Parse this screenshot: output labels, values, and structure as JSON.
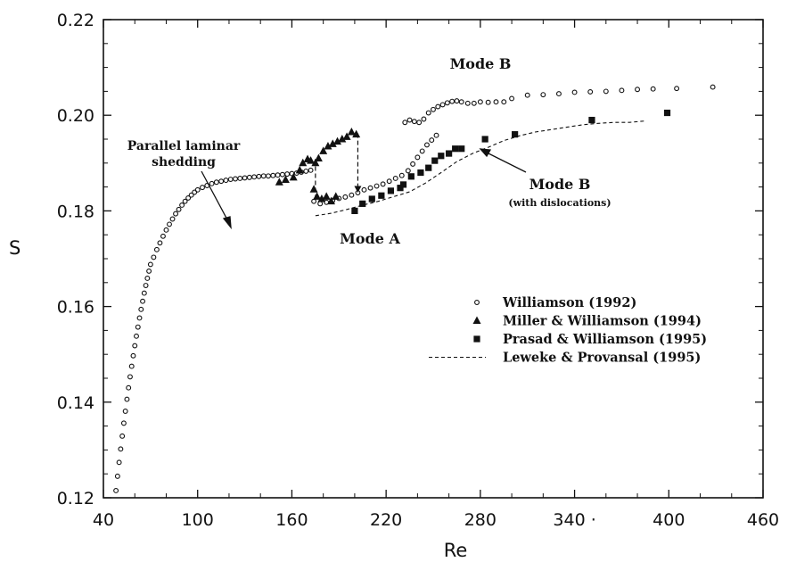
{
  "chart_data": {
    "type": "scatter",
    "xlabel": "Re",
    "ylabel": "S",
    "xlim": [
      40,
      460
    ],
    "ylim": [
      0.12,
      0.22
    ],
    "xticks": [
      40,
      100,
      160,
      220,
      280,
      340,
      400,
      460
    ],
    "xtick_labels": [
      "40",
      "100",
      "160",
      "220",
      "280",
      "340 ·",
      "400",
      "460"
    ],
    "yticks": [
      0.12,
      0.14,
      0.16,
      0.18,
      0.2,
      0.22
    ],
    "ytick_labels": [
      "0.12",
      "0.14",
      "0.16",
      "0.18",
      "0.20",
      "0.22"
    ],
    "grid": false,
    "legend_position": "lower-right",
    "annotations": {
      "parallel_line1": "Parallel laminar",
      "parallel_line2": "shedding",
      "mode_a": "Mode A",
      "mode_b_top": "Mode B",
      "mode_b_right": "Mode B",
      "with_dislocations": "(with dislocations)"
    },
    "series": [
      {
        "name": "Williamson (1992)",
        "marker": "circle",
        "points": [
          [
            48,
            0.1215
          ],
          [
            49,
            0.1245
          ],
          [
            50,
            0.1274
          ],
          [
            51,
            0.1302
          ],
          [
            52,
            0.1329
          ],
          [
            53,
            0.1356
          ],
          [
            54,
            0.1381
          ],
          [
            55,
            0.1406
          ],
          [
            56,
            0.143
          ],
          [
            57,
            0.1453
          ],
          [
            58,
            0.1475
          ],
          [
            59,
            0.1497
          ],
          [
            60,
            0.1518
          ],
          [
            61,
            0.1538
          ],
          [
            62,
            0.1557
          ],
          [
            63,
            0.1576
          ],
          [
            64,
            0.1594
          ],
          [
            65,
            0.1611
          ],
          [
            66,
            0.1628
          ],
          [
            67,
            0.1644
          ],
          [
            68,
            0.1659
          ],
          [
            69,
            0.1674
          ],
          [
            70,
            0.1688
          ],
          [
            72,
            0.1703
          ],
          [
            74,
            0.1719
          ],
          [
            76,
            0.1733
          ],
          [
            78,
            0.1747
          ],
          [
            80,
            0.176
          ],
          [
            82,
            0.1772
          ],
          [
            84,
            0.1783
          ],
          [
            86,
            0.1794
          ],
          [
            88,
            0.1803
          ],
          [
            90,
            0.1812
          ],
          [
            92,
            0.182
          ],
          [
            94,
            0.1827
          ],
          [
            96,
            0.1833
          ],
          [
            98,
            0.1839
          ],
          [
            100,
            0.1844
          ],
          [
            103,
            0.1849
          ],
          [
            106,
            0.1853
          ],
          [
            109,
            0.1857
          ],
          [
            112,
            0.186
          ],
          [
            115,
            0.1862
          ],
          [
            118,
            0.1864
          ],
          [
            121,
            0.1866
          ],
          [
            124,
            0.1867
          ],
          [
            127,
            0.1868
          ],
          [
            130,
            0.1869
          ],
          [
            133,
            0.187
          ],
          [
            136,
            0.1871
          ],
          [
            139,
            0.1872
          ],
          [
            142,
            0.1873
          ],
          [
            145,
            0.1873
          ],
          [
            148,
            0.1874
          ],
          [
            151,
            0.1875
          ],
          [
            154,
            0.1876
          ],
          [
            157,
            0.1877
          ],
          [
            160,
            0.1878
          ],
          [
            163,
            0.1879
          ],
          [
            166,
            0.1881
          ],
          [
            169,
            0.1883
          ],
          [
            172,
            0.1885
          ],
          [
            174,
            0.182
          ],
          [
            178,
            0.1815
          ],
          [
            182,
            0.1818
          ],
          [
            186,
            0.1822
          ],
          [
            190,
            0.1826
          ],
          [
            194,
            0.1829
          ],
          [
            198,
            0.1833
          ],
          [
            202,
            0.1838
          ],
          [
            206,
            0.1844
          ],
          [
            210,
            0.1848
          ],
          [
            214,
            0.1852
          ],
          [
            218,
            0.1856
          ],
          [
            222,
            0.1862
          ],
          [
            226,
            0.1868
          ],
          [
            230,
            0.1874
          ],
          [
            234,
            0.1884
          ],
          [
            237,
            0.1898
          ],
          [
            240,
            0.1912
          ],
          [
            243,
            0.1925
          ],
          [
            246,
            0.1938
          ],
          [
            249,
            0.1948
          ],
          [
            252,
            0.1958
          ],
          [
            232,
            0.1985
          ],
          [
            235,
            0.199
          ],
          [
            238,
            0.1987
          ],
          [
            241,
            0.1985
          ],
          [
            244,
            0.1992
          ],
          [
            247,
            0.2005
          ],
          [
            250,
            0.2012
          ],
          [
            253,
            0.2018
          ],
          [
            256,
            0.2022
          ],
          [
            259,
            0.2026
          ],
          [
            262,
            0.2029
          ],
          [
            265,
            0.203
          ],
          [
            268,
            0.2028
          ],
          [
            272,
            0.2025
          ],
          [
            276,
            0.2025
          ],
          [
            280,
            0.2028
          ],
          [
            285,
            0.2027
          ],
          [
            290,
            0.2028
          ],
          [
            295,
            0.2028
          ],
          [
            300,
            0.2035
          ],
          [
            310,
            0.2042
          ],
          [
            320,
            0.2043
          ],
          [
            330,
            0.2045
          ],
          [
            340,
            0.2048
          ],
          [
            350,
            0.2049
          ],
          [
            360,
            0.205
          ],
          [
            370,
            0.2052
          ],
          [
            380,
            0.2054
          ],
          [
            390,
            0.2055
          ],
          [
            405,
            0.2056
          ],
          [
            428,
            0.2059
          ]
        ]
      },
      {
        "name": "Miller & Williamson (1994)",
        "marker": "triangle",
        "points": [
          [
            152,
            0.186
          ],
          [
            156,
            0.1865
          ],
          [
            161,
            0.187
          ],
          [
            165,
            0.1885
          ],
          [
            167,
            0.19
          ],
          [
            170,
            0.1908
          ],
          [
            172,
            0.1905
          ],
          [
            175,
            0.19
          ],
          [
            177,
            0.191
          ],
          [
            180,
            0.1925
          ],
          [
            183,
            0.1935
          ],
          [
            186,
            0.194
          ],
          [
            189,
            0.1945
          ],
          [
            192,
            0.195
          ],
          [
            195,
            0.1955
          ],
          [
            198,
            0.1965
          ],
          [
            201,
            0.196
          ],
          [
            174,
            0.1845
          ],
          [
            176,
            0.183
          ],
          [
            179,
            0.1825
          ],
          [
            182,
            0.183
          ],
          [
            185,
            0.182
          ],
          [
            188,
            0.183
          ]
        ]
      },
      {
        "name": "Prasad & Williamson (1995)",
        "marker": "square",
        "points": [
          [
            200,
            0.18
          ],
          [
            205,
            0.1815
          ],
          [
            211,
            0.1825
          ],
          [
            217,
            0.1832
          ],
          [
            223,
            0.1842
          ],
          [
            229,
            0.1848
          ],
          [
            231,
            0.1855
          ],
          [
            236,
            0.1872
          ],
          [
            242,
            0.188
          ],
          [
            247,
            0.189
          ],
          [
            251,
            0.1905
          ],
          [
            255,
            0.1915
          ],
          [
            260,
            0.192
          ],
          [
            264,
            0.193
          ],
          [
            268,
            0.193
          ],
          [
            283,
            0.195
          ],
          [
            302,
            0.196
          ],
          [
            351,
            0.199
          ],
          [
            399,
            0.2005
          ]
        ]
      },
      {
        "name": "Leweke & Provansal (1995)",
        "marker": "dashed-line",
        "points": [
          [
            175,
            0.179
          ],
          [
            185,
            0.1795
          ],
          [
            195,
            0.1803
          ],
          [
            205,
            0.1812
          ],
          [
            215,
            0.182
          ],
          [
            225,
            0.183
          ],
          [
            235,
            0.184
          ],
          [
            245,
            0.1858
          ],
          [
            255,
            0.188
          ],
          [
            265,
            0.1903
          ],
          [
            275,
            0.192
          ],
          [
            285,
            0.1933
          ],
          [
            295,
            0.1947
          ],
          [
            305,
            0.1957
          ],
          [
            315,
            0.1965
          ],
          [
            325,
            0.197
          ],
          [
            335,
            0.1975
          ],
          [
            345,
            0.198
          ],
          [
            355,
            0.1983
          ],
          [
            365,
            0.1985
          ],
          [
            375,
            0.1985
          ],
          [
            385,
            0.1988
          ]
        ]
      }
    ]
  }
}
